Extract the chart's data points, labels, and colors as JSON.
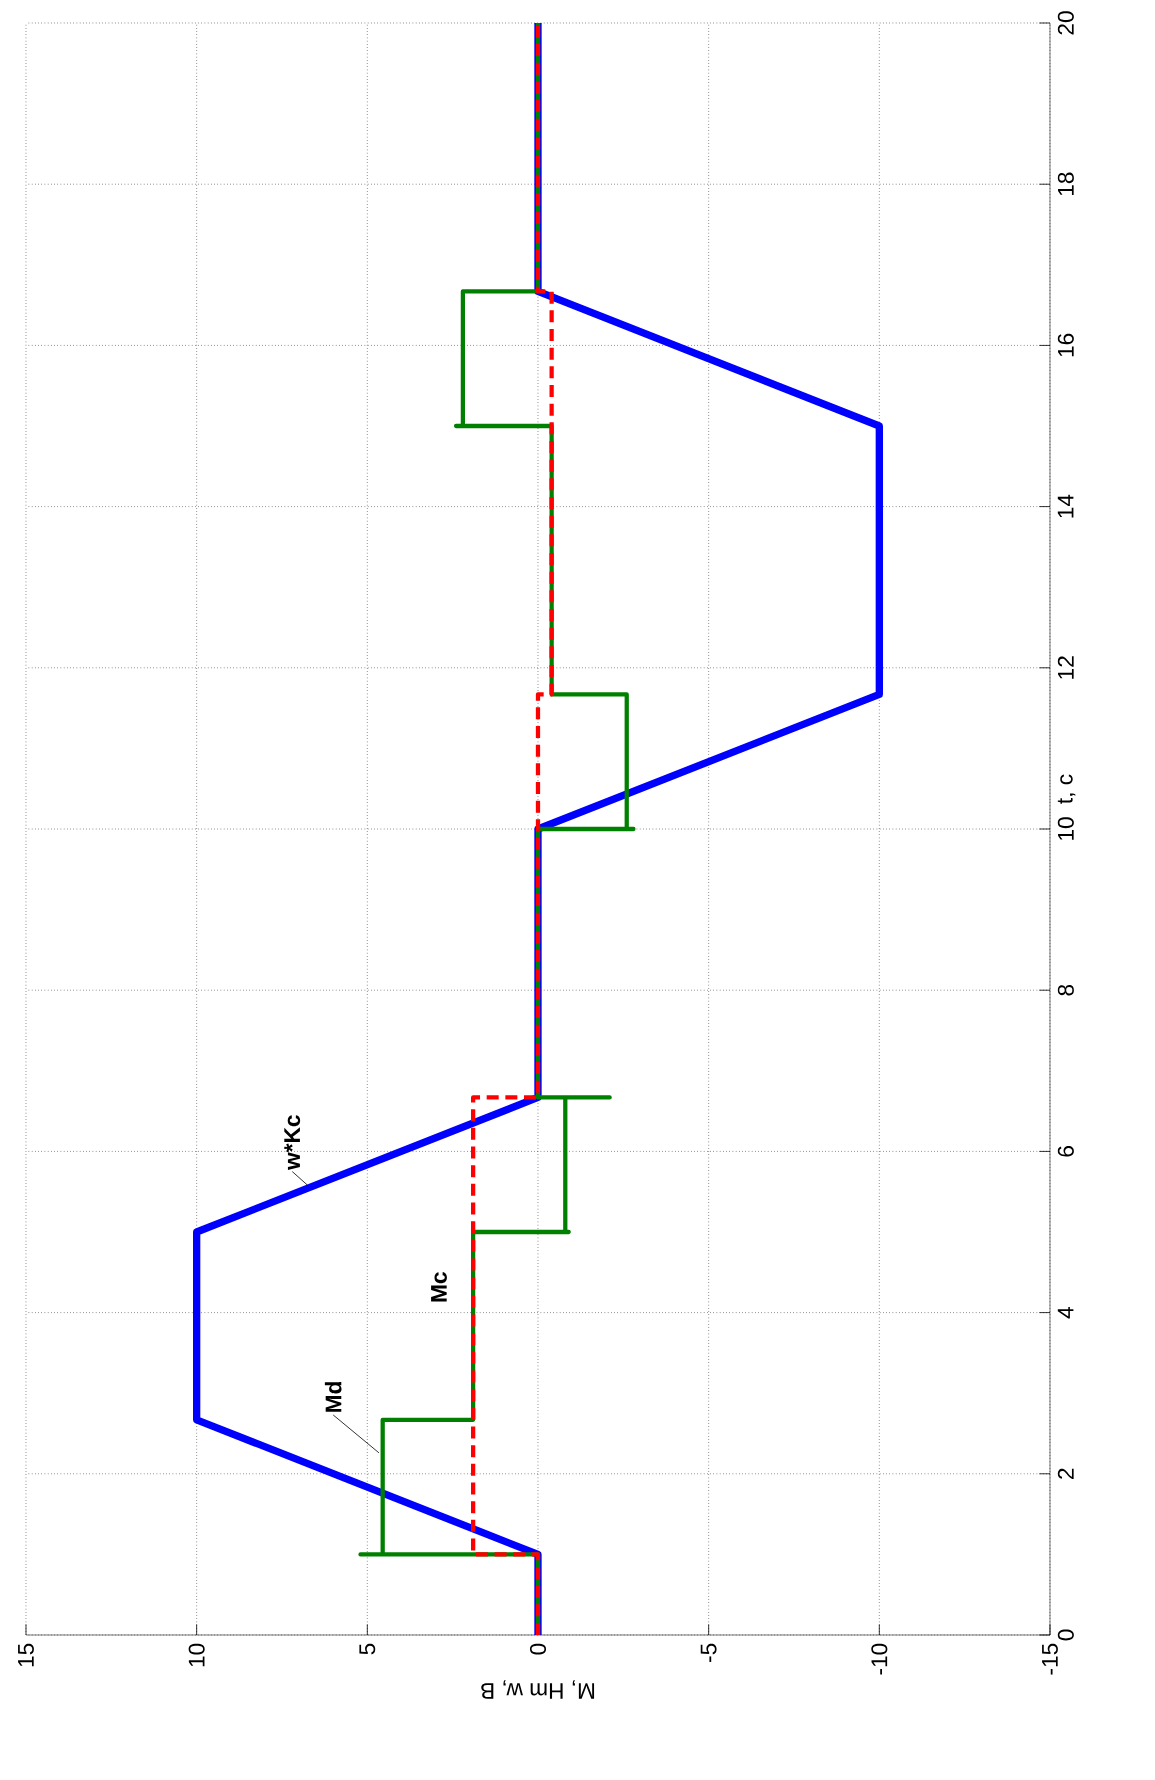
{
  "chart_data": {
    "type": "line",
    "xlabel": "M, Hm     w, B",
    "ylabel": "t, c",
    "xlim": [
      15,
      -15
    ],
    "xticks": [
      15,
      10,
      5,
      0,
      -5,
      -10,
      -15
    ],
    "ylim": [
      0,
      20
    ],
    "yticks": [
      0,
      2,
      4,
      6,
      8,
      10,
      12,
      14,
      16,
      18,
      20
    ],
    "grid": true,
    "line_style": "solid",
    "series": [
      {
        "color": "#0000ff",
        "values": [
          0,
          1,
          2.67,
          5,
          6.67,
          10,
          11.67,
          15,
          16.67,
          20
        ],
        "x": [
          0,
          0,
          10,
          10,
          0,
          0,
          -10,
          -10,
          0,
          0
        ]
      },
      {
        "color": "#008000",
        "values": [
          0,
          1,
          1,
          1,
          2.67,
          2.67,
          5,
          5,
          5,
          6.67,
          6.67,
          6.67,
          10,
          10,
          10,
          11.67,
          11.67,
          15,
          15,
          15,
          16.67,
          16.67,
          20
        ],
        "x": [
          0,
          0,
          5.2,
          4.55,
          4.55,
          1.9,
          1.9,
          -0.9,
          -0.8,
          -0.8,
          -2.1,
          0,
          0,
          -2.8,
          -2.6,
          -2.6,
          -0.4,
          -0.4,
          2.4,
          2.2,
          2.2,
          0,
          0
        ]
      },
      {
        "color": "#ff0000",
        "line_style": "dashed",
        "values": [
          0,
          1,
          1,
          6.67,
          6.67,
          11.67,
          11.67,
          16.67,
          16.67,
          20
        ],
        "x": [
          0,
          0,
          1.9,
          1.9,
          0,
          0,
          -0.4,
          -0.4,
          0,
          0
        ]
      }
    ],
    "annotations": [
      {
        "text": "w*Kc",
        "x": 6.75,
        "y": 5.58
      },
      {
        "text": "Mc",
        "x": 1.9,
        "y": 4.1
      },
      {
        "text": "Md",
        "x": 4.66,
        "y": 2.26
      }
    ]
  }
}
